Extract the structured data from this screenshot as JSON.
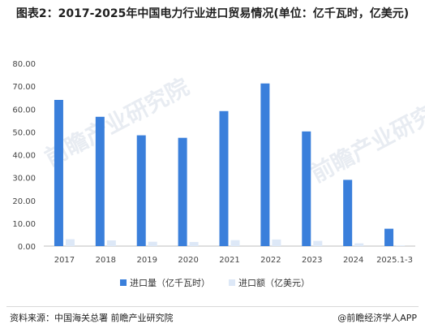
{
  "header": {
    "title": "图表2：2017-2025年中国电力行业进口贸易情况(单位：亿千瓦时，亿美元)"
  },
  "watermark": {
    "text": "前瞻产业研究院"
  },
  "chart_data": {
    "type": "bar",
    "categories": [
      "2017",
      "2018",
      "2019",
      "2020",
      "2021",
      "2022",
      "2023",
      "2024",
      "2025.1-3"
    ],
    "series": [
      {
        "name": "进口量（亿千瓦时）",
        "color": "#3a7fdb",
        "values": [
          64.0,
          56.6,
          48.5,
          47.4,
          59.1,
          71.2,
          50.2,
          29.0,
          7.6
        ]
      },
      {
        "name": "进口额（亿美元）",
        "color": "#dde8f7",
        "values": [
          3.0,
          2.5,
          1.9,
          1.8,
          2.6,
          2.9,
          2.3,
          1.2,
          0.3
        ]
      }
    ],
    "yticks": [
      "0.00",
      "10.00",
      "20.00",
      "30.00",
      "40.00",
      "50.00",
      "60.00",
      "70.00",
      "80.00"
    ],
    "ylim": [
      0,
      80
    ],
    "grid": false,
    "legend_position": "bottom"
  },
  "footer": {
    "source": "资料来源：中国海关总署 前瞻产业研究院",
    "brand": "@前瞻经济学人APP"
  }
}
